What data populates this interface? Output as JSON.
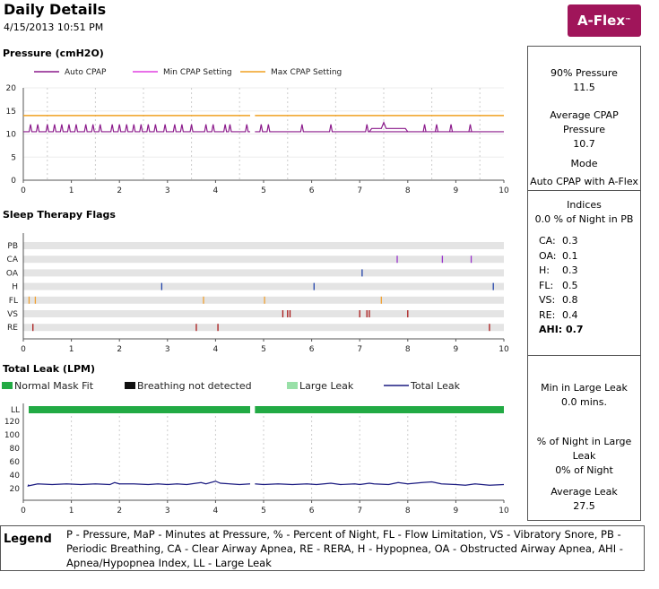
{
  "header": {
    "title": "Daily Details",
    "date": "4/15/2013 10:51 PM",
    "logo": "A-Flex",
    "logo_tm": "™"
  },
  "pressure": {
    "section_title": "Pressure (cmH2O)",
    "stats": {
      "p90_label": "90% Pressure",
      "p90_value": "11.5",
      "avg_label": "Average CPAP Pressure",
      "avg_value": "10.7",
      "mode_label": "Mode",
      "mode_value": "Auto CPAP with A-Flex"
    }
  },
  "flags": {
    "section_title": "Sleep Therapy Flags",
    "indices": {
      "title": "Indices",
      "pb_line": "0.0 % of Night in PB",
      "rows": [
        {
          "label": "CA:",
          "value": "0.3"
        },
        {
          "label": "OA:",
          "value": "0.1"
        },
        {
          "label": "H:",
          "value": "0.3"
        },
        {
          "label": "FL:",
          "value": "0.5"
        },
        {
          "label": "VS:",
          "value": "0.8"
        },
        {
          "label": "RE:",
          "value": "0.4"
        }
      ],
      "ahi_label": "AHI:",
      "ahi_value": "0.7"
    }
  },
  "leak": {
    "section_title": "Total Leak (LPM)",
    "legend": {
      "normal": "Normal Mask Fit",
      "breathing": "Breathing not detected",
      "large": "Large Leak",
      "total": "Total Leak"
    },
    "stats": {
      "min_label": "Min in Large Leak",
      "min_value": "0.0  mins.",
      "pct_label": "% of Night in Large Leak",
      "pct_value": "0% of Night",
      "avg_label": "Average Leak",
      "avg_value": "27.5"
    }
  },
  "legend": {
    "title": "Legend",
    "text": "P - Pressure, MaP - Minutes at Pressure, % - Percent of Night, FL - Flow Limitation, VS - Vibratory Snore, PB - Periodic Breathing, CA - Clear Airway Apnea, RE - RERA, H - Hypopnea, OA - Obstructed Airway Apnea, AHI - Apnea/Hypopnea Index, LL - Large Leak"
  },
  "colors": {
    "auto": "#8b1a8b",
    "min": "#e040e0",
    "max": "#f0a020",
    "leak_line": "#1a1a80",
    "normal_fit": "#22aa44",
    "breathing": "#111111",
    "large_leak": "#99e0a8",
    "flag_band": "#e4e4e4"
  },
  "chart_data": [
    {
      "type": "line",
      "name": "pressure",
      "series_labels": [
        "Auto CPAP",
        "Min CPAP Setting",
        "Max CPAP Setting"
      ],
      "xlim": [
        0,
        10
      ],
      "ylim": [
        0,
        20
      ],
      "xticks": [
        "0",
        "1",
        "2",
        "3",
        "4",
        "5",
        "6",
        "7",
        "8",
        "9",
        "10"
      ],
      "yticks": [
        "0",
        "5",
        "10",
        "15",
        "20"
      ],
      "gaps": [
        [
          4.72,
          4.82
        ]
      ],
      "max_setting": 14,
      "auto_baseline": 10.5,
      "auto_spikes": [
        0.15,
        0.3,
        0.5,
        0.65,
        0.8,
        0.95,
        1.1,
        1.3,
        1.45,
        1.6,
        1.85,
        2.0,
        2.15,
        2.3,
        2.45,
        2.6,
        2.75,
        2.95,
        3.15,
        3.3,
        3.5,
        3.8,
        3.95,
        4.2,
        4.3,
        4.65,
        4.95,
        5.1,
        5.8,
        6.4,
        7.15,
        8.35,
        8.6,
        8.9,
        9.3
      ],
      "auto_plateau": [
        [
          7.2,
          8.0,
          11.2
        ]
      ],
      "auto_peak": [
        7.5,
        12.5
      ]
    },
    {
      "type": "scatter",
      "name": "sleep_therapy_flags",
      "xlim": [
        0,
        10
      ],
      "xticks": [
        "0",
        "1",
        "2",
        "3",
        "4",
        "5",
        "6",
        "7",
        "8",
        "9",
        "10"
      ],
      "rows": [
        "PB",
        "CA",
        "OA",
        "H",
        "FL",
        "VS",
        "RE"
      ],
      "events": {
        "PB": [],
        "CA": [
          7.78,
          8.72,
          9.32
        ],
        "OA": [
          7.05
        ],
        "H": [
          2.88,
          6.05,
          9.78
        ],
        "FL": [
          0.12,
          0.25,
          3.75,
          5.02,
          7.45
        ],
        "VS": [
          5.4,
          5.5,
          5.55,
          7.0,
          7.15,
          7.2,
          8.0
        ],
        "RE": [
          0.2,
          3.6,
          4.05,
          9.7
        ]
      }
    },
    {
      "type": "line",
      "name": "total_leak",
      "xlim": [
        0,
        10
      ],
      "ylim": [
        20,
        120
      ],
      "yticks": [
        "20",
        "40",
        "60",
        "80",
        "100",
        "120"
      ],
      "ytop_label": "LL",
      "xticks": [
        "0",
        "1",
        "2",
        "3",
        "4",
        "5",
        "6",
        "7",
        "8",
        "9",
        "10"
      ],
      "gaps": [
        [
          4.72,
          4.82
        ]
      ],
      "values": [
        [
          0,
          26
        ],
        [
          0.1,
          24
        ],
        [
          0.3,
          27
        ],
        [
          0.6,
          26
        ],
        [
          0.9,
          27
        ],
        [
          1.2,
          26
        ],
        [
          1.5,
          27
        ],
        [
          1.8,
          26
        ],
        [
          1.9,
          29
        ],
        [
          2.0,
          27
        ],
        [
          2.3,
          27
        ],
        [
          2.6,
          26
        ],
        [
          2.8,
          27
        ],
        [
          3.0,
          26
        ],
        [
          3.2,
          27
        ],
        [
          3.4,
          26
        ],
        [
          3.7,
          29
        ],
        [
          3.8,
          27
        ],
        [
          4.0,
          31
        ],
        [
          4.1,
          28
        ],
        [
          4.3,
          27
        ],
        [
          4.5,
          26
        ],
        [
          4.72,
          27
        ],
        [
          4.82,
          27
        ],
        [
          5.0,
          26
        ],
        [
          5.3,
          27
        ],
        [
          5.6,
          26
        ],
        [
          5.9,
          27
        ],
        [
          6.1,
          26
        ],
        [
          6.4,
          28
        ],
        [
          6.6,
          26
        ],
        [
          6.9,
          27
        ],
        [
          7.0,
          26
        ],
        [
          7.2,
          28
        ],
        [
          7.3,
          27
        ],
        [
          7.6,
          26
        ],
        [
          7.8,
          29
        ],
        [
          8.0,
          27
        ],
        [
          8.3,
          29
        ],
        [
          8.5,
          30
        ],
        [
          8.7,
          27
        ],
        [
          9.0,
          26
        ],
        [
          9.2,
          25
        ],
        [
          9.4,
          27
        ],
        [
          9.7,
          25
        ],
        [
          10,
          26
        ]
      ]
    }
  ]
}
